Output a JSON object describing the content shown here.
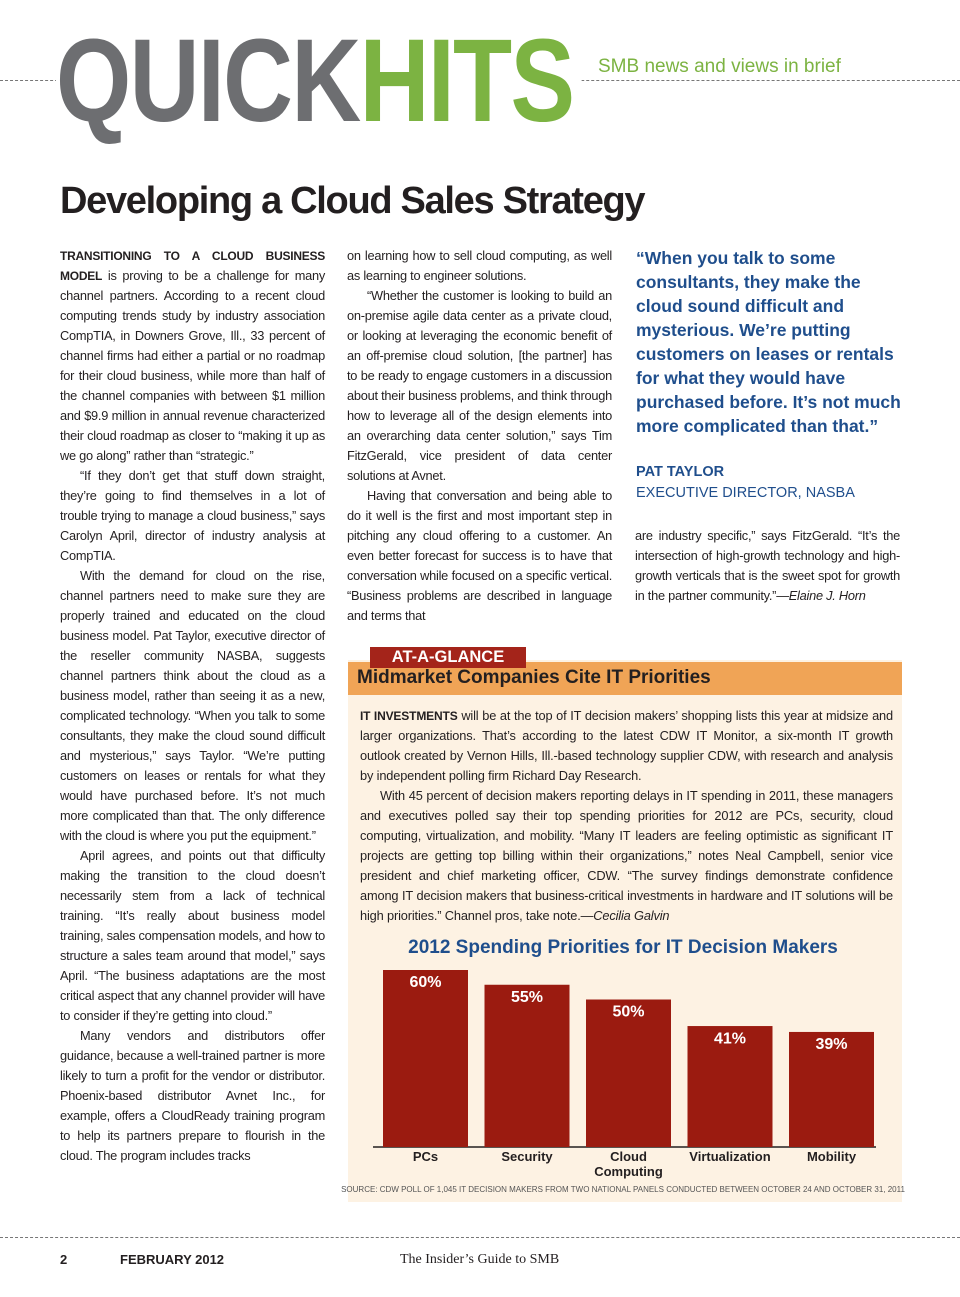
{
  "header": {
    "title_part1": "QUICK",
    "title_part2": "HITS",
    "tagline": "SMB news and views in brief"
  },
  "article": {
    "headline": "Developing a Cloud Sales Strategy",
    "columns": [
      {
        "paragraphs": [
          {
            "lead": "TRANSITIONING TO A CLOUD BUSINESS MODEL",
            "text": " is proving to be a challenge for many channel partners. According to a recent cloud computing trends study by industry association CompTIA, in Downers Grove, Ill., 33 percent of channel firms had either a partial or no roadmap for their cloud business, while more than half of the channel companies with between $1 million and $9.9 million in annual revenue characterized their cloud roadmap as closer to “making it up as we go along” rather than “strategic.”"
          },
          "“If they don’t get that stuff down straight, they’re going to find themselves in a lot of trouble trying to manage a cloud business,” says Carolyn April, director of industry analysis at CompTIA.",
          "With the demand for cloud on the rise, channel partners need to make sure they are properly trained and educated on the cloud business model. Pat Taylor, executive director of the reseller community NASBA, suggests channel partners think about the cloud as a business model, rather than seeing it as a new, complicated technology. “When you talk to some consultants, they make the cloud sound difficult and mysterious,” says Taylor. “We’re putting customers on leases or rentals for what they would have purchased before. It’s not much more complicated than that. The only difference with the cloud is where you put the equipment.”",
          "April agrees, and points out that difficulty making the transition to the cloud doesn’t necessarily stem from a lack of technical training. “It’s really about business model training, sales compensation models, and how to structure a sales team around that model,” says April. “The business adaptations are the most critical aspect that any channel provider will have to consider if they’re getting into cloud.”",
          "Many vendors and distributors offer guidance, because a well-trained partner is more likely to turn a profit for the vendor or distributor. Phoenix-based distributor Avnet Inc., for example, offers a CloudReady training program to help its partners prepare to flourish in the cloud. The program includes tracks"
        ]
      },
      {
        "paragraphs": [
          "on learning how to sell cloud computing, as well as learning to engineer solutions.",
          "“Whether the customer is looking to build an on-premise agile data center as a private cloud, or looking at leveraging the economic benefit of an off-premise cloud solution, [the partner] has to be ready to engage customers in a discussion about their business problems, and think through how to leverage all of the design elements into an overarching data center solution,” says Tim FitzGerald, vice president of data center solutions at Avnet.",
          "Having that conversation and being able to do it well is the first and most important step in pitching any cloud offering to a customer. An even better forecast for success is to have that conversation while focused on a specific vertical. “Business problems are described in language and terms that"
        ]
      },
      {
        "paragraphs": [
          "are industry specific,” says FitzGerald. “It’s the intersection of high-growth technology and high-growth verticals that is the sweet spot for growth in the partner community.”"
        ],
        "byline": "—Elaine J. Horn"
      }
    ]
  },
  "pull_quote": {
    "text": "“When you talk to some consultants, they make the cloud sound difficult and mysterious. We’re putting customers on leases or rentals for what they would have purchased before. It’s not much more complicated than that.”",
    "name": "PAT TAYLOR",
    "role": "EXECUTIVE DIRECTOR, NASBA"
  },
  "sidebar": {
    "tab": "AT-A-GLANCE",
    "title": "Midmarket Companies Cite IT Priorities",
    "paragraphs": [
      {
        "lead": "IT INVESTMENTS",
        "text": " will be at the top of IT decision makers’ shopping lists this year at midsize and larger organizations. That’s according to the latest CDW IT Monitor, a six-month IT growth outlook created by Vernon Hills, Ill.-based technology supplier CDW, with research and analysis by independent polling firm Richard Day Research."
      },
      {
        "text": "With 45 percent of decision makers reporting delays in IT spending in 2011, these managers and executives polled say their top spending priorities for 2012 are PCs, security, cloud computing, virtualization, and mobility. “Many IT leaders are feeling optimistic as significant IT projects are getting top billing within their organizations,” notes Neal Campbell, senior vice president and chief marketing officer, CDW. “The survey findings demonstrate confidence among IT decision makers that business-critical investments in hardware and IT solutions will be high priorities.” Channel pros, take note.",
        "byline": "—Cecilia Galvin"
      }
    ]
  },
  "chart_data": {
    "type": "bar",
    "title": "2012 Spending Priorities for IT Decision Makers",
    "categories": [
      "PCs",
      "Security",
      "Cloud Computing",
      "Virtualization",
      "Mobility"
    ],
    "values": [
      60,
      55,
      50,
      41,
      39
    ],
    "value_labels": [
      "60%",
      "55%",
      "50%",
      "41%",
      "39%"
    ],
    "color": "#9b1b10",
    "source": "SOURCE: CDW POLL OF 1,045 IT DECISION MAKERS FROM TWO NATIONAL PANELS CONDUCTED BETWEEN OCTOBER 24 AND OCTOBER 31, 2011"
  },
  "footer": {
    "page": 2,
    "date": "FEBRUARY 2012",
    "publication": "The Insider’s Guide to SMB"
  }
}
